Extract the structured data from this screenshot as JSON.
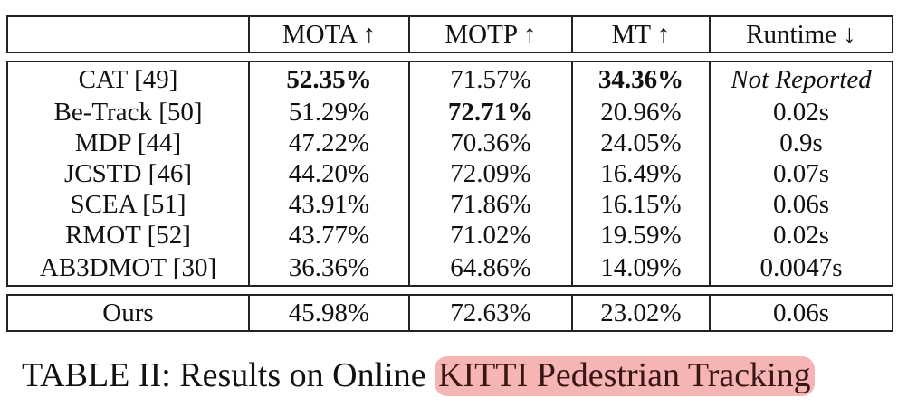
{
  "table": {
    "headers": [
      "",
      "MOTA ↑",
      "MOTP ↑",
      "MT ↑",
      "Runtime ↓"
    ],
    "rows": [
      {
        "method": "CAT [49]",
        "mota": "52.35%",
        "motp": "71.57%",
        "mt": "34.36%",
        "runtime": "Not Reported"
      },
      {
        "method": "Be-Track [50]",
        "mota": "51.29%",
        "motp": "72.71%",
        "mt": "20.96%",
        "runtime": "0.02s"
      },
      {
        "method": "MDP [44]",
        "mota": "47.22%",
        "motp": "70.36%",
        "mt": "24.05%",
        "runtime": "0.9s"
      },
      {
        "method": "JCSTD [46]",
        "mota": "44.20%",
        "motp": "72.09%",
        "mt": "16.49%",
        "runtime": "0.07s"
      },
      {
        "method": "SCEA [51]",
        "mota": "43.91%",
        "motp": "71.86%",
        "mt": "16.15%",
        "runtime": "0.06s"
      },
      {
        "method": "RMOT [52]",
        "mota": "43.77%",
        "motp": "71.02%",
        "mt": "19.59%",
        "runtime": "0.02s"
      },
      {
        "method": "AB3DMOT [30]",
        "mota": "36.36%",
        "motp": "64.86%",
        "mt": "14.09%",
        "runtime": "0.0047s"
      }
    ],
    "ours": {
      "method": "Ours",
      "mota": "45.98%",
      "motp": "72.63%",
      "mt": "23.02%",
      "runtime": "0.06s"
    }
  },
  "caption": {
    "prefix": "TABLE II: Results on Online ",
    "highlighted": "KITTI Pedestrian Tracking",
    "highlight_color": "#ec7878"
  }
}
